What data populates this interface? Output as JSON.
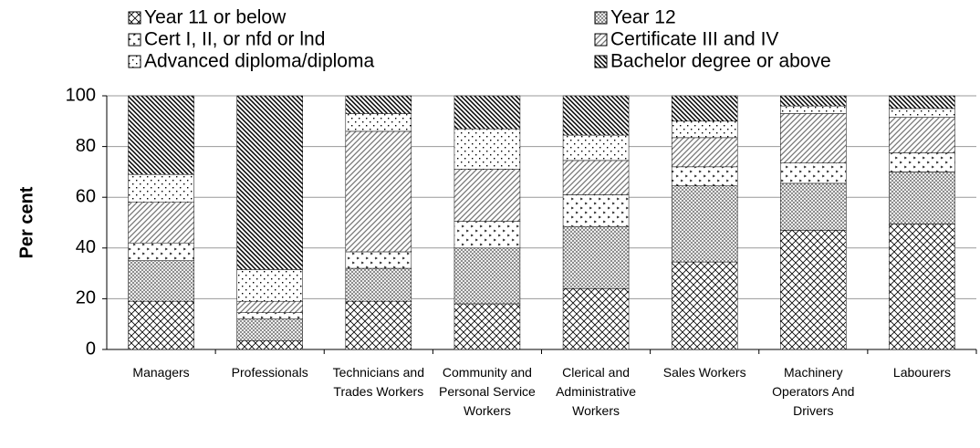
{
  "chart_data": {
    "type": "stacked_bar",
    "y_label": "Per cent",
    "categories": [
      "Managers",
      "Professionals",
      "Technicians and Trades Workers",
      "Community and Personal Service Workers",
      "Clerical and Administrative Workers",
      "Sales Workers",
      "Machinery Operators And Drivers",
      "Labourers"
    ],
    "series": [
      {
        "name": "Year 11 or below",
        "color": "#000000",
        "values": [
          19,
          3.5,
          19,
          18,
          24,
          34.5,
          47,
          49.5
        ]
      },
      {
        "name": "Year 12",
        "color": "#000000",
        "values": [
          16,
          8.5,
          13,
          22,
          24.5,
          30,
          18.5,
          20.5
        ]
      },
      {
        "name": "Cert I, II, or nfd or lnd",
        "color": "#000000",
        "values": [
          7,
          2.5,
          6.5,
          10.5,
          12.5,
          7.5,
          8,
          7.5
        ]
      },
      {
        "name": "Certificate III and IV",
        "color": "#000000",
        "values": [
          16,
          4.5,
          47.5,
          20.5,
          13.5,
          11.5,
          19.5,
          14
        ]
      },
      {
        "name": "Advanced diploma/diploma",
        "color": "#000000",
        "values": [
          11,
          12.5,
          7,
          16,
          10,
          6.5,
          3,
          3.5
        ]
      },
      {
        "name": "Bachelor degree or above",
        "color": "#000000",
        "values": [
          31,
          68.5,
          7,
          13,
          15.5,
          10,
          4,
          5
        ]
      }
    ],
    "ylim": [
      0,
      100
    ],
    "yticks": [
      0,
      20,
      40,
      60,
      80,
      100
    ],
    "grid": true
  }
}
